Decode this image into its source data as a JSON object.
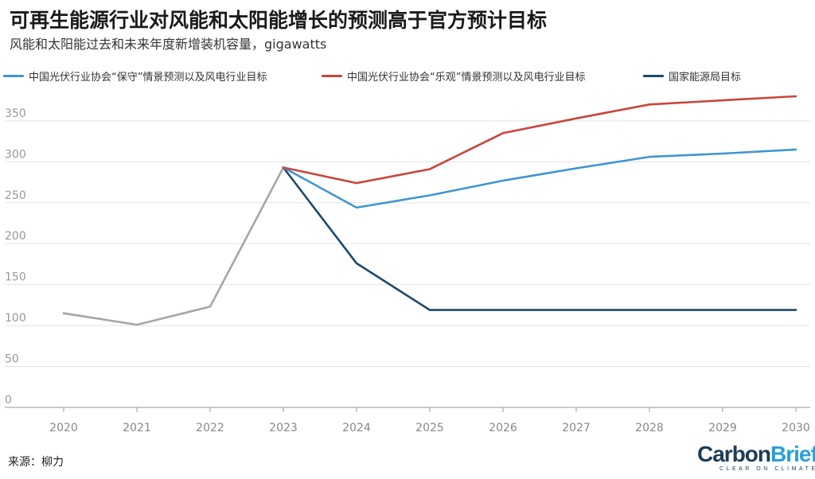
{
  "header": {
    "title": "可再生能源行业对风能和太阳能增长的预测高于官方预计目标",
    "subtitle": "风能和太阳能过去和未来年度新增装机容量，gigawatts"
  },
  "footer": {
    "source": "来源：柳力",
    "logo": {
      "carbon": "Carbon",
      "brief": "Brief",
      "tagline": "CLEAR ON CLIMATE"
    }
  },
  "colors": {
    "historical": "#a6a6a6",
    "conservative": "#3f96d2",
    "optimistic": "#c8463a",
    "nea": "#1d4a6e",
    "grid": "#e3e3e3",
    "axis": "#999999"
  },
  "chart_data": {
    "type": "line",
    "title": "可再生能源行业对风能和太阳能增长的预测高于官方预计目标",
    "subtitle": "风能和太阳能过去和未来年度新增装机容量，gigawatts",
    "xlabel": "",
    "ylabel": "",
    "x_ticks": [
      "2020",
      "2021",
      "2022",
      "2023",
      "2024",
      "2025",
      "2026",
      "2027",
      "2028",
      "2029",
      "2030"
    ],
    "y_ticks": [
      0,
      50,
      100,
      150,
      200,
      250,
      300,
      350
    ],
    "ylim": [
      0,
      380
    ],
    "grid": true,
    "legend_position": "top-left",
    "series": [
      {
        "key": "historical",
        "name": "",
        "x": [
          2020,
          2021,
          2022,
          2023
        ],
        "y": [
          115,
          101,
          123,
          293
        ]
      },
      {
        "key": "conservative",
        "name": "中国光伏行业协会“保守”情景预测以及风电行业目标",
        "x": [
          2023,
          2024,
          2025,
          2026,
          2027,
          2028,
          2029,
          2030
        ],
        "y": [
          293,
          244,
          259,
          277,
          292,
          306,
          310,
          315
        ]
      },
      {
        "key": "optimistic",
        "name": "中国光伏行业协会“乐观”情景预测以及风电行业目标",
        "x": [
          2023,
          2024,
          2025,
          2026,
          2027,
          2028,
          2029,
          2030
        ],
        "y": [
          293,
          274,
          291,
          335,
          353,
          370,
          375,
          380
        ]
      },
      {
        "key": "nea",
        "name": "国家能源局目标",
        "x": [
          2023,
          2024,
          2025,
          2026,
          2027,
          2028,
          2029,
          2030
        ],
        "y": [
          293,
          176,
          119,
          119,
          119,
          119,
          119,
          119
        ]
      }
    ]
  }
}
